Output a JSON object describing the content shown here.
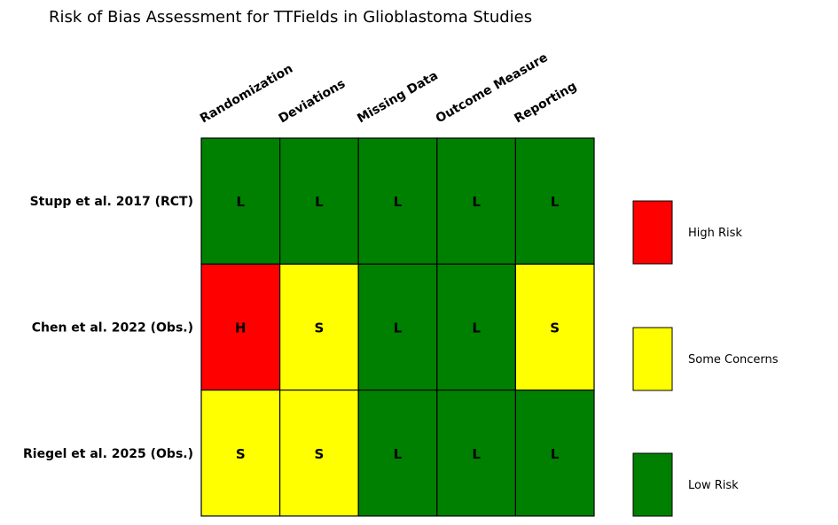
{
  "chart_data": {
    "type": "heatmap",
    "title": "Risk of Bias Assessment for TTFields in Glioblastoma Studies",
    "columns": [
      "Randomization",
      "Deviations",
      "Missing Data",
      "Outcome Measure",
      "Reporting"
    ],
    "rows": [
      "Stupp et al. 2017 (RCT)",
      "Chen et al. 2022 (Obs.)",
      "Riegel et al. 2025 (Obs.)"
    ],
    "values": [
      [
        "L",
        "L",
        "L",
        "L",
        "L"
      ],
      [
        "H",
        "S",
        "L",
        "L",
        "S"
      ],
      [
        "S",
        "S",
        "L",
        "L",
        "L"
      ]
    ],
    "categories": {
      "H": {
        "label": "High Risk",
        "color": "#ff0000"
      },
      "S": {
        "label": "Some Concerns",
        "color": "#ffff00"
      },
      "L": {
        "label": "Low Risk",
        "color": "#008000"
      }
    },
    "legend": [
      "H",
      "S",
      "L"
    ],
    "legend_position": "right"
  }
}
